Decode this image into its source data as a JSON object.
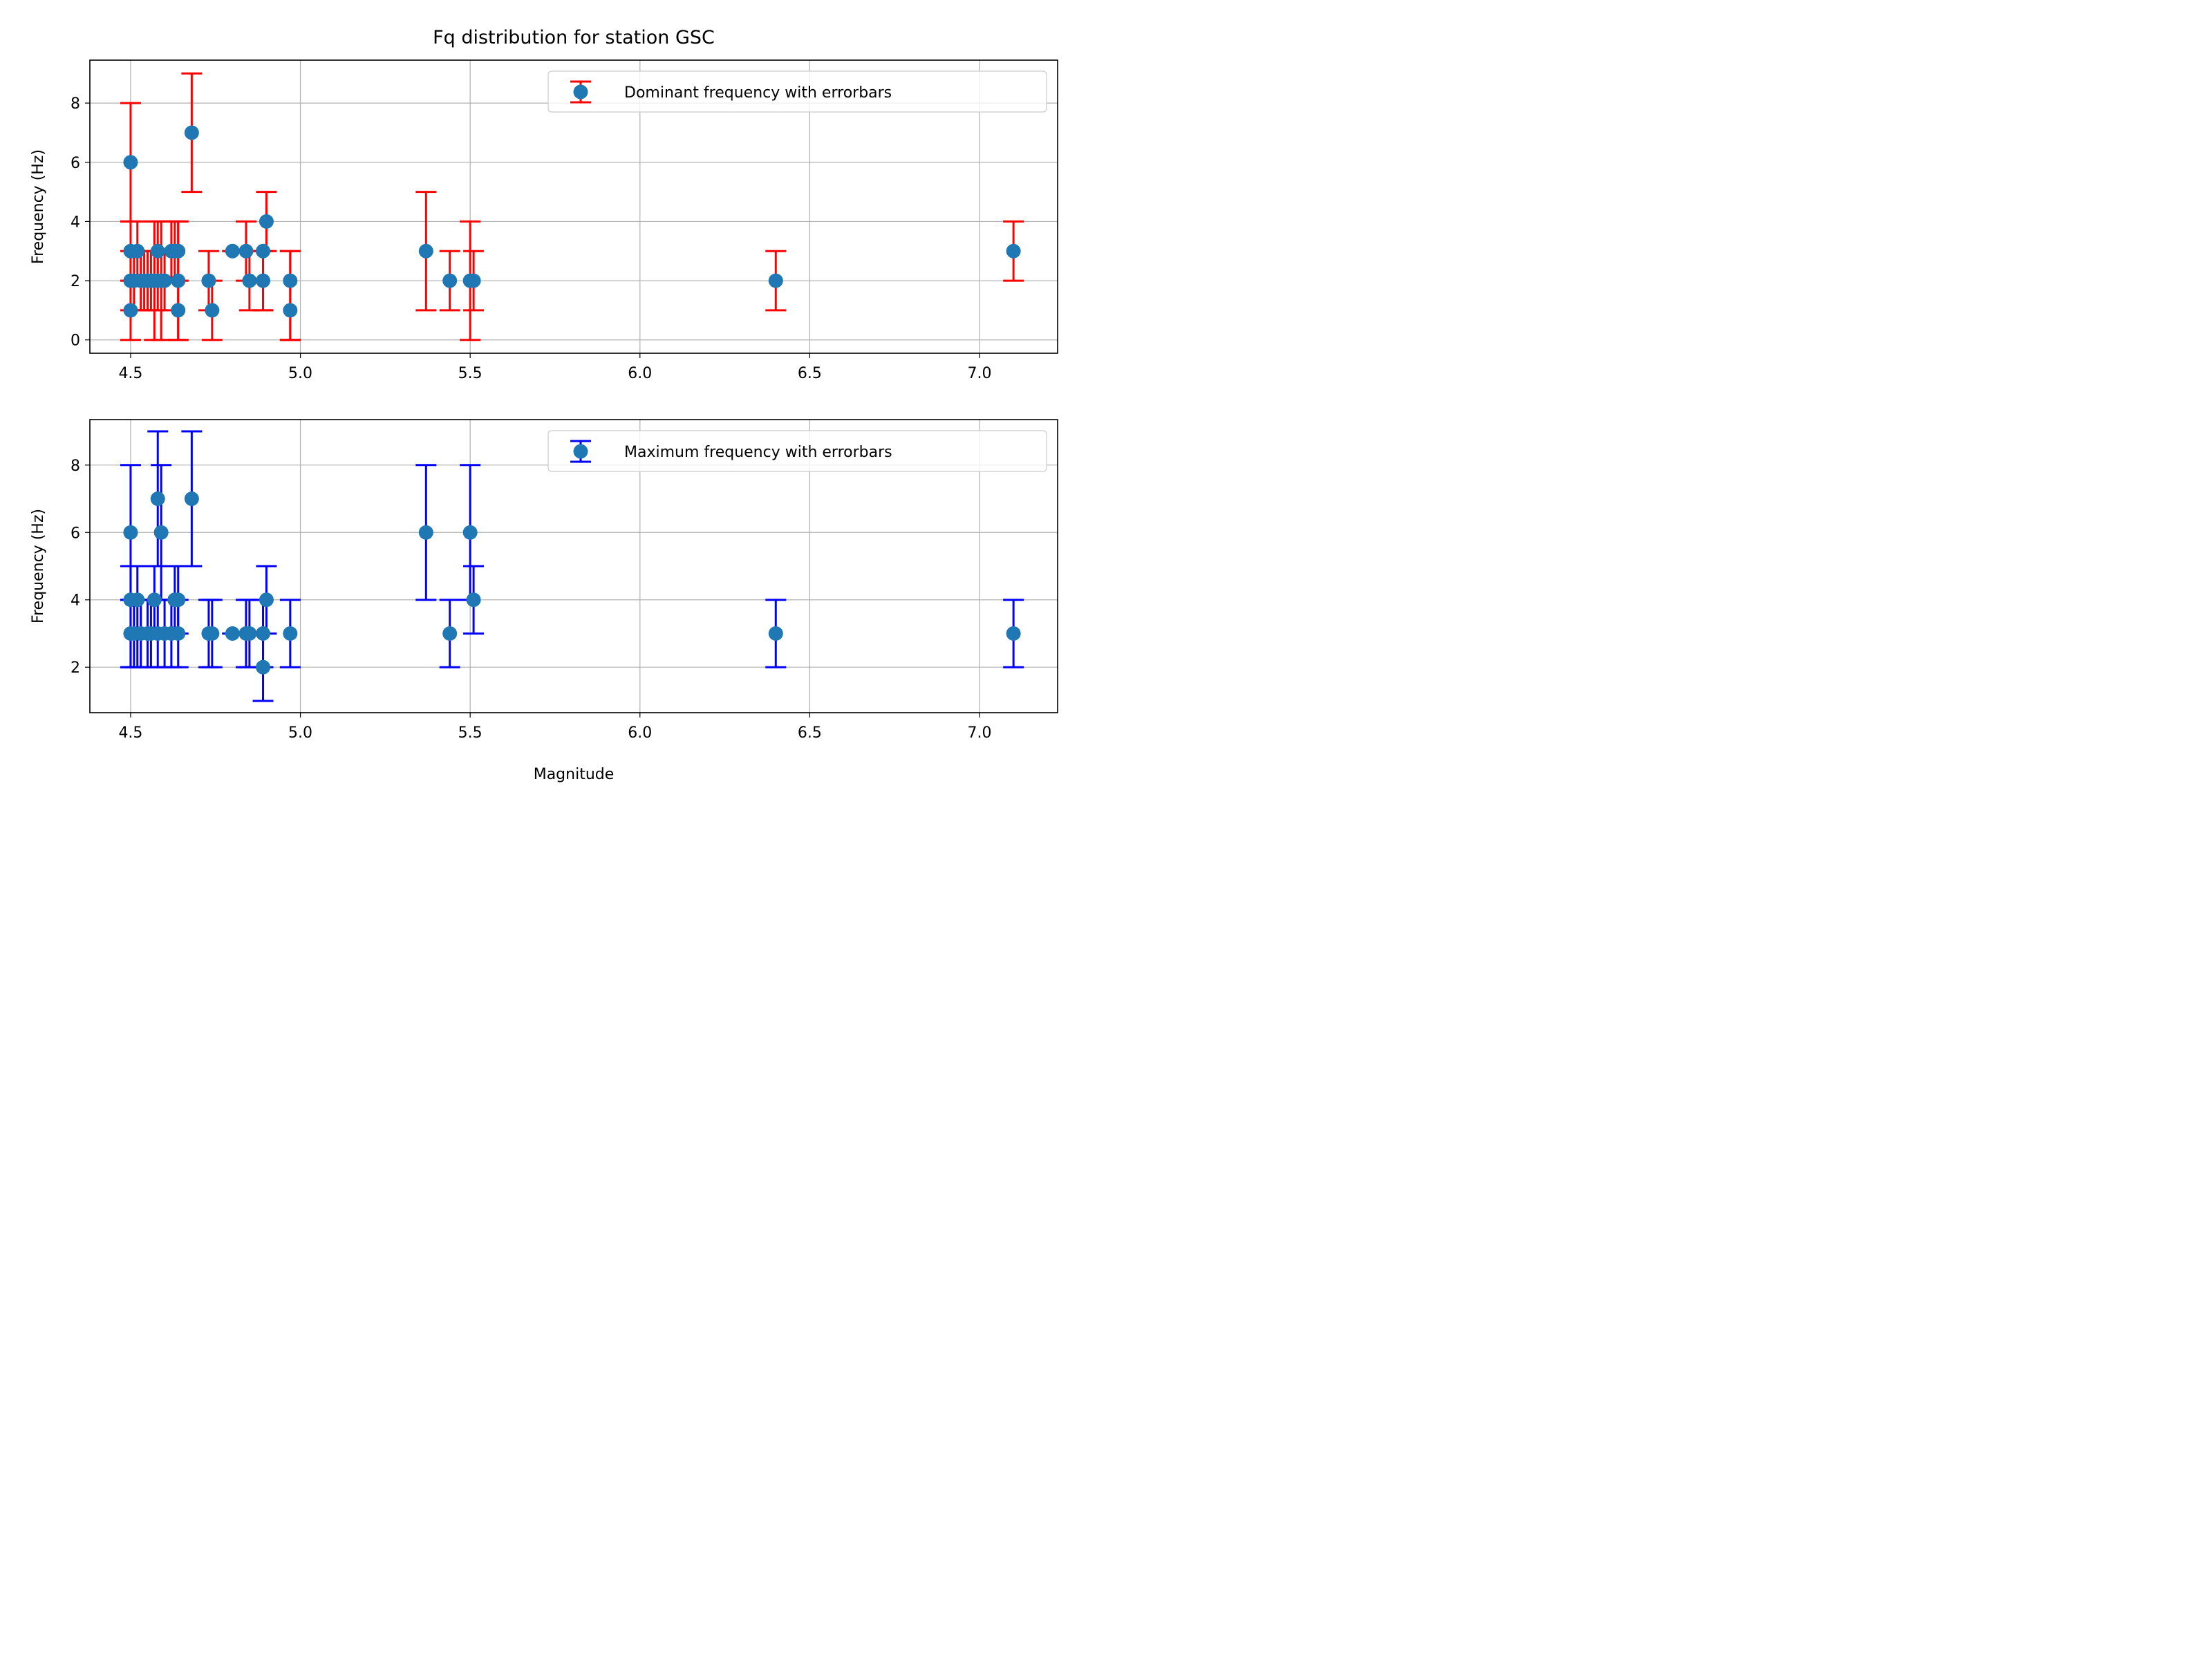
{
  "figure": {
    "title": "Fq distribution for station GSC"
  },
  "chart_data": [
    {
      "type": "scatter",
      "errorbars": true,
      "title": "Fq distribution for station GSC",
      "xlabel": "",
      "ylabel": "Frequency (Hz)",
      "xlim": [
        4.38,
        7.23
      ],
      "ylim": [
        -0.45,
        9.45
      ],
      "xticks": [
        4.5,
        5.0,
        5.5,
        6.0,
        6.5,
        7.0
      ],
      "xtick_labels": [
        "4.5",
        "5.0",
        "5.5",
        "6.0",
        "6.5",
        "7.0"
      ],
      "yticks": [
        0,
        2,
        4,
        6,
        8
      ],
      "ytick_labels": [
        "0",
        "2",
        "4",
        "6",
        "8"
      ],
      "grid": true,
      "legend": {
        "position": "top-right",
        "entries": [
          "Dominant frequency with errorbars"
        ]
      },
      "colors": {
        "marker": "#1f77b4",
        "errorbar": "#ff0000"
      },
      "series": [
        {
          "name": "Dominant frequency with errorbars",
          "points": [
            {
              "x": 4.5,
              "y": 6,
              "lo": 4,
              "hi": 8
            },
            {
              "x": 4.5,
              "y": 3,
              "lo": 2,
              "hi": 4
            },
            {
              "x": 4.5,
              "y": 2,
              "lo": 1,
              "hi": 3
            },
            {
              "x": 4.5,
              "y": 1,
              "lo": 0,
              "hi": 2
            },
            {
              "x": 4.51,
              "y": 2,
              "lo": 1,
              "hi": 3
            },
            {
              "x": 4.52,
              "y": 3,
              "lo": 2,
              "hi": 4
            },
            {
              "x": 4.53,
              "y": 2,
              "lo": 1,
              "hi": 3
            },
            {
              "x": 4.54,
              "y": 2,
              "lo": 1,
              "hi": 3
            },
            {
              "x": 4.55,
              "y": 2,
              "lo": 1,
              "hi": 3
            },
            {
              "x": 4.56,
              "y": 2,
              "lo": 1,
              "hi": 3
            },
            {
              "x": 4.57,
              "y": 2,
              "lo": 0,
              "hi": 4
            },
            {
              "x": 4.58,
              "y": 3,
              "lo": 2,
              "hi": 4
            },
            {
              "x": 4.58,
              "y": 2,
              "lo": 1,
              "hi": 3
            },
            {
              "x": 4.59,
              "y": 2,
              "lo": 0,
              "hi": 4
            },
            {
              "x": 4.6,
              "y": 2,
              "lo": 1,
              "hi": 3
            },
            {
              "x": 4.62,
              "y": 3,
              "lo": 2,
              "hi": 4
            },
            {
              "x": 4.63,
              "y": 3,
              "lo": 2,
              "hi": 4
            },
            {
              "x": 4.64,
              "y": 3,
              "lo": 2,
              "hi": 4
            },
            {
              "x": 4.64,
              "y": 2,
              "lo": 0,
              "hi": 4
            },
            {
              "x": 4.64,
              "y": 1,
              "lo": 0,
              "hi": 2
            },
            {
              "x": 4.68,
              "y": 7,
              "lo": 5,
              "hi": 9
            },
            {
              "x": 4.73,
              "y": 2,
              "lo": 1,
              "hi": 3
            },
            {
              "x": 4.74,
              "y": 1,
              "lo": 0,
              "hi": 2
            },
            {
              "x": 4.8,
              "y": 3,
              "lo": 3,
              "hi": 3
            },
            {
              "x": 4.84,
              "y": 3,
              "lo": 2,
              "hi": 4
            },
            {
              "x": 4.85,
              "y": 2,
              "lo": 1,
              "hi": 3
            },
            {
              "x": 4.89,
              "y": 3,
              "lo": 1,
              "hi": 3
            },
            {
              "x": 4.89,
              "y": 2,
              "lo": 1,
              "hi": 3
            },
            {
              "x": 4.9,
              "y": 4,
              "lo": 3,
              "hi": 5
            },
            {
              "x": 4.97,
              "y": 2,
              "lo": 0,
              "hi": 3
            },
            {
              "x": 4.97,
              "y": 1,
              "lo": 0,
              "hi": 3
            },
            {
              "x": 5.37,
              "y": 3,
              "lo": 1,
              "hi": 5
            },
            {
              "x": 5.44,
              "y": 2,
              "lo": 1,
              "hi": 3
            },
            {
              "x": 5.5,
              "y": 2,
              "lo": 0,
              "hi": 4
            },
            {
              "x": 5.51,
              "y": 2,
              "lo": 1,
              "hi": 3
            },
            {
              "x": 6.4,
              "y": 2,
              "lo": 1,
              "hi": 3
            },
            {
              "x": 7.1,
              "y": 3,
              "lo": 2,
              "hi": 4
            }
          ]
        }
      ]
    },
    {
      "type": "scatter",
      "errorbars": true,
      "title": "",
      "xlabel": "Magnitude",
      "ylabel": "Frequency (Hz)",
      "xlim": [
        4.38,
        7.23
      ],
      "ylim": [
        0.65,
        9.35
      ],
      "xticks": [
        4.5,
        5.0,
        5.5,
        6.0,
        6.5,
        7.0
      ],
      "xtick_labels": [
        "4.5",
        "5.0",
        "5.5",
        "6.0",
        "6.5",
        "7.0"
      ],
      "yticks": [
        2,
        4,
        6,
        8
      ],
      "ytick_labels": [
        "2",
        "4",
        "6",
        "8"
      ],
      "grid": true,
      "legend": {
        "position": "top-right",
        "entries": [
          "Maximum frequency with errorbars"
        ]
      },
      "colors": {
        "marker": "#1f77b4",
        "errorbar": "#0000ff"
      },
      "series": [
        {
          "name": "Maximum frequency with errorbars",
          "points": [
            {
              "x": 4.5,
              "y": 6,
              "lo": 4,
              "hi": 8
            },
            {
              "x": 4.5,
              "y": 4,
              "lo": 2,
              "hi": 5
            },
            {
              "x": 4.5,
              "y": 3,
              "lo": 2,
              "hi": 4
            },
            {
              "x": 4.51,
              "y": 3,
              "lo": 2,
              "hi": 4
            },
            {
              "x": 4.52,
              "y": 4,
              "lo": 2,
              "hi": 5
            },
            {
              "x": 4.53,
              "y": 3,
              "lo": 2,
              "hi": 4
            },
            {
              "x": 4.55,
              "y": 3,
              "lo": 2,
              "hi": 4
            },
            {
              "x": 4.56,
              "y": 3,
              "lo": 2,
              "hi": 4
            },
            {
              "x": 4.57,
              "y": 4,
              "lo": 3,
              "hi": 5
            },
            {
              "x": 4.58,
              "y": 7,
              "lo": 5,
              "hi": 9
            },
            {
              "x": 4.58,
              "y": 3,
              "lo": 2,
              "hi": 4
            },
            {
              "x": 4.59,
              "y": 6,
              "lo": 4,
              "hi": 8
            },
            {
              "x": 4.6,
              "y": 3,
              "lo": 2,
              "hi": 4
            },
            {
              "x": 4.62,
              "y": 3,
              "lo": 2,
              "hi": 4
            },
            {
              "x": 4.63,
              "y": 4,
              "lo": 3,
              "hi": 5
            },
            {
              "x": 4.64,
              "y": 4,
              "lo": 3,
              "hi": 5
            },
            {
              "x": 4.64,
              "y": 3,
              "lo": 2,
              "hi": 4
            },
            {
              "x": 4.68,
              "y": 7,
              "lo": 5,
              "hi": 9
            },
            {
              "x": 4.73,
              "y": 3,
              "lo": 2,
              "hi": 4
            },
            {
              "x": 4.74,
              "y": 3,
              "lo": 2,
              "hi": 4
            },
            {
              "x": 4.8,
              "y": 3,
              "lo": 3,
              "hi": 3
            },
            {
              "x": 4.84,
              "y": 3,
              "lo": 2,
              "hi": 4
            },
            {
              "x": 4.85,
              "y": 3,
              "lo": 2,
              "hi": 4
            },
            {
              "x": 4.89,
              "y": 3,
              "lo": 2,
              "hi": 4
            },
            {
              "x": 4.89,
              "y": 2,
              "lo": 1,
              "hi": 3
            },
            {
              "x": 4.9,
              "y": 4,
              "lo": 3,
              "hi": 5
            },
            {
              "x": 4.97,
              "y": 3,
              "lo": 2,
              "hi": 4
            },
            {
              "x": 5.37,
              "y": 6,
              "lo": 4,
              "hi": 8
            },
            {
              "x": 5.44,
              "y": 3,
              "lo": 2,
              "hi": 4
            },
            {
              "x": 5.5,
              "y": 6,
              "lo": 4,
              "hi": 8
            },
            {
              "x": 5.51,
              "y": 4,
              "lo": 3,
              "hi": 5
            },
            {
              "x": 6.4,
              "y": 3,
              "lo": 2,
              "hi": 4
            },
            {
              "x": 7.1,
              "y": 3,
              "lo": 2,
              "hi": 4
            }
          ]
        }
      ]
    }
  ]
}
